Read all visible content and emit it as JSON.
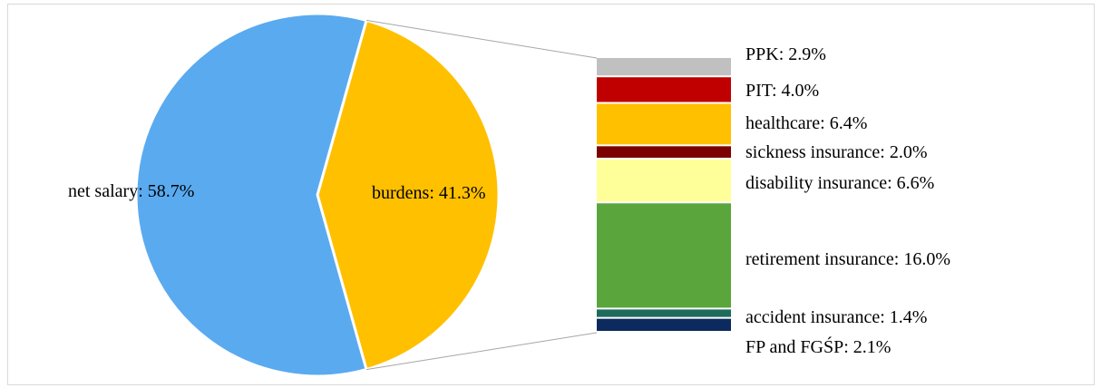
{
  "chart_data": {
    "type": "bar-of-pie",
    "pie": {
      "slices": [
        {
          "label": "net salary: 58.7%",
          "name": "net salary",
          "value": 58.7,
          "color": "#5aaaf0"
        },
        {
          "label": "burdens: 41.3%",
          "name": "burdens",
          "value": 41.3,
          "color": "#ffc000"
        }
      ]
    },
    "bar": {
      "segments": [
        {
          "label": "PPK: 2.9%",
          "name": "PPK",
          "value": 2.9,
          "color": "#c0c0c0"
        },
        {
          "label": "PIT: 4.0%",
          "name": "PIT",
          "value": 4.0,
          "color": "#c00000"
        },
        {
          "label": "healthcare: 6.4%",
          "name": "healthcare",
          "value": 6.4,
          "color": "#ffc000"
        },
        {
          "label": "sickness insurance: 2.0%",
          "name": "sickness insurance",
          "value": 2.0,
          "color": "#7b0000"
        },
        {
          "label": "disability insurance: 6.6%",
          "name": "disability insurance",
          "value": 6.6,
          "color": "#ffff99"
        },
        {
          "label": "retirement insurance: 16.0%",
          "name": "retirement insurance",
          "value": 16.0,
          "color": "#5aa63c"
        },
        {
          "label": "accident insurance: 1.4%",
          "name": "accident insurance",
          "value": 1.4,
          "color": "#1e6b5c"
        },
        {
          "label": "FP and FGŚP: 2.1%",
          "name": "FP and FGŚP",
          "value": 2.1,
          "color": "#0d2a5e"
        }
      ]
    },
    "legend": "none"
  }
}
